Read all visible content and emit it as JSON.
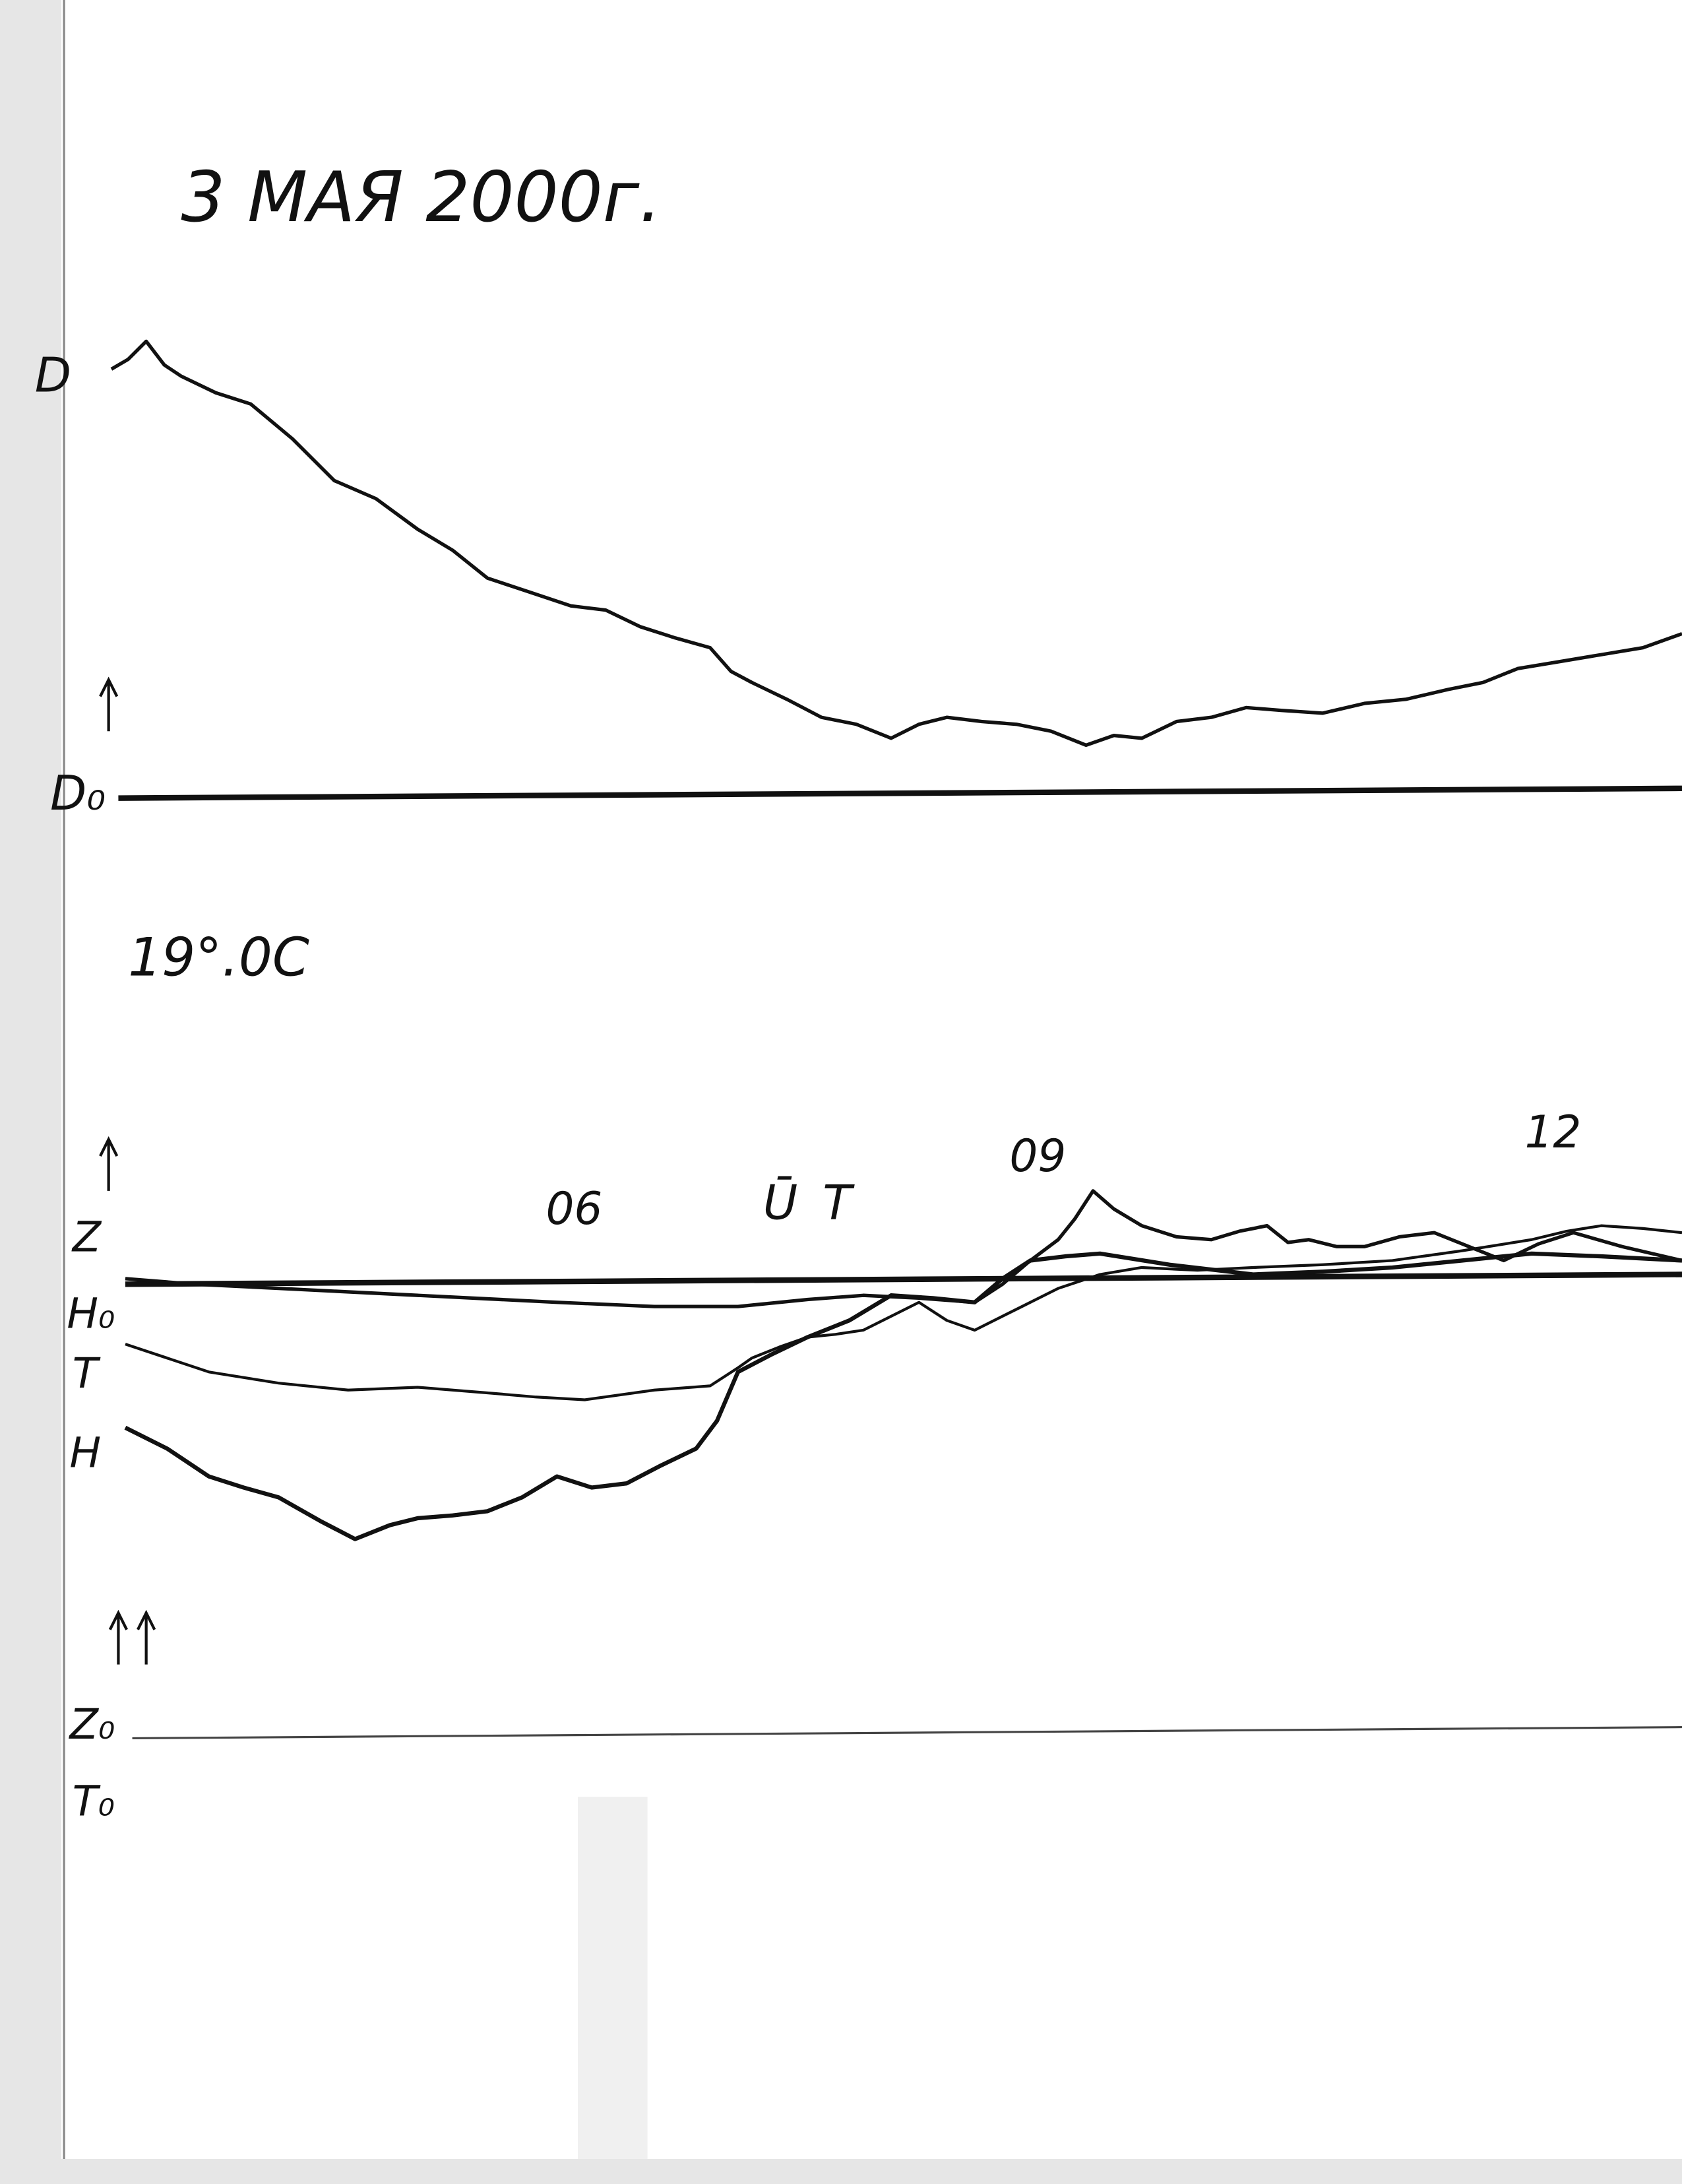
{
  "header": {
    "title": "3 МАЯ 2000г.",
    "temperature": "19°.0C"
  },
  "trace_labels": {
    "d": "D",
    "d_base": "D₀",
    "z": "Z",
    "h_base": "H₀",
    "t": "T",
    "h": "H",
    "z_base": "Z₀",
    "t_base": "T₀"
  },
  "time_labels": {
    "t06": "06",
    "ut": "ŪT",
    "t09": "09",
    "t12": "12"
  }
}
